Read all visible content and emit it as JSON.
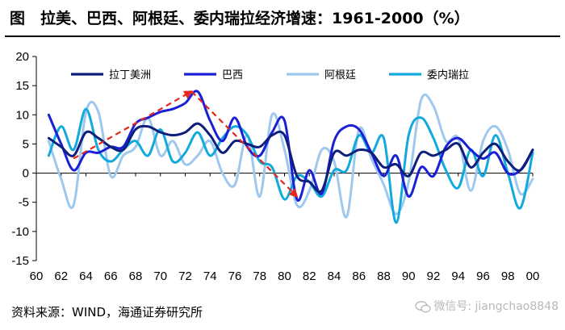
{
  "header": {
    "title": "图　拉美、巴西、阿根廷、委内瑞拉经济增速：1961-2000（%）"
  },
  "footer": {
    "source": "资料来源：WIND，海通证券研究所",
    "watermark": "微信号: jiangchao8848"
  },
  "chart_data": {
    "type": "line",
    "title": "图　拉美、巴西、阿根廷、委内瑞拉经济增速：1961-2000（%）",
    "xlabel": "",
    "ylabel": "",
    "ylim": [
      -15,
      20
    ],
    "yticks": [
      -15,
      -10,
      -5,
      0,
      5,
      10,
      15,
      20
    ],
    "xlim": [
      1960,
      2000
    ],
    "xticks": [
      1960,
      1962,
      1964,
      1966,
      1968,
      1970,
      1972,
      1974,
      1976,
      1978,
      1980,
      1982,
      1984,
      1986,
      1988,
      1990,
      1992,
      1994,
      1996,
      1998,
      2000
    ],
    "xtick_labels": [
      "60",
      "62",
      "64",
      "66",
      "68",
      "70",
      "72",
      "74",
      "76",
      "78",
      "80",
      "82",
      "84",
      "86",
      "88",
      "90",
      "92",
      "94",
      "96",
      "98",
      "00"
    ],
    "grid": false,
    "legend": "top",
    "x": [
      1961,
      1962,
      1963,
      1964,
      1965,
      1966,
      1967,
      1968,
      1969,
      1970,
      1971,
      1972,
      1973,
      1974,
      1975,
      1976,
      1977,
      1978,
      1979,
      1980,
      1981,
      1982,
      1983,
      1984,
      1985,
      1986,
      1987,
      1988,
      1989,
      1990,
      1991,
      1992,
      1993,
      1994,
      1995,
      1996,
      1997,
      1998,
      1999,
      2000
    ],
    "series": [
      {
        "name": "拉丁美洲",
        "color": "#0d1f7a",
        "width": 3,
        "values": [
          6.0,
          4.5,
          3.0,
          7.0,
          6.0,
          4.5,
          4.0,
          7.5,
          8.0,
          7.0,
          6.5,
          7.0,
          8.5,
          6.5,
          3.5,
          5.5,
          5.0,
          4.5,
          6.5,
          6.5,
          -0.5,
          -1.5,
          -3.0,
          3.5,
          3.0,
          4.0,
          3.5,
          1.0,
          1.5,
          -0.5,
          3.5,
          3.0,
          4.0,
          5.0,
          1.0,
          3.5,
          5.0,
          2.0,
          0.5,
          4.0
        ]
      },
      {
        "name": "巴西",
        "color": "#1b20d6",
        "width": 3,
        "values": [
          10.0,
          5.0,
          0.5,
          3.5,
          3.5,
          4.5,
          4.5,
          8.5,
          9.5,
          10.5,
          11.0,
          12.0,
          14.0,
          9.0,
          5.5,
          9.5,
          4.5,
          3.0,
          7.0,
          9.0,
          -4.5,
          0.5,
          -3.5,
          5.5,
          8.0,
          7.5,
          3.5,
          -0.5,
          3.0,
          -4.0,
          1.0,
          -0.5,
          4.5,
          6.0,
          4.0,
          2.5,
          3.5,
          0.0,
          0.5,
          4.0
        ]
      },
      {
        "name": "阿根廷",
        "color": "#9ec8ee",
        "width": 3,
        "values": [
          5.5,
          -1.0,
          -5.5,
          10.5,
          10.5,
          -0.5,
          3.0,
          4.5,
          9.5,
          3.0,
          5.5,
          1.5,
          3.0,
          5.5,
          0.0,
          -2.0,
          6.5,
          -4.0,
          10.0,
          4.0,
          -5.5,
          -3.0,
          4.0,
          2.0,
          -7.5,
          7.5,
          2.5,
          -2.0,
          -7.0,
          -1.5,
          12.5,
          11.5,
          5.5,
          6.0,
          -3.0,
          5.5,
          8.0,
          4.0,
          -3.5,
          -1.0
        ]
      },
      {
        "name": "委内瑞拉",
        "color": "#12a9dc",
        "width": 3,
        "values": [
          3.0,
          8.0,
          4.0,
          11.0,
          4.0,
          2.0,
          4.0,
          5.5,
          3.0,
          7.5,
          2.0,
          3.5,
          7.0,
          3.0,
          6.0,
          8.0,
          6.5,
          2.0,
          1.0,
          -4.5,
          -0.5,
          -1.5,
          -4.0,
          0.5,
          0.5,
          6.5,
          3.5,
          6.0,
          -8.5,
          6.5,
          9.5,
          6.0,
          0.5,
          -2.5,
          4.0,
          -0.5,
          6.5,
          0.0,
          -6.0,
          3.5
        ]
      }
    ],
    "annotation": {
      "type": "trend-arrows",
      "color": "#e8261b",
      "style": "dashed",
      "points": [
        [
          1963,
          2.5
        ],
        [
          1972.5,
          14.0
        ],
        [
          1981,
          -4.0
        ]
      ]
    }
  }
}
